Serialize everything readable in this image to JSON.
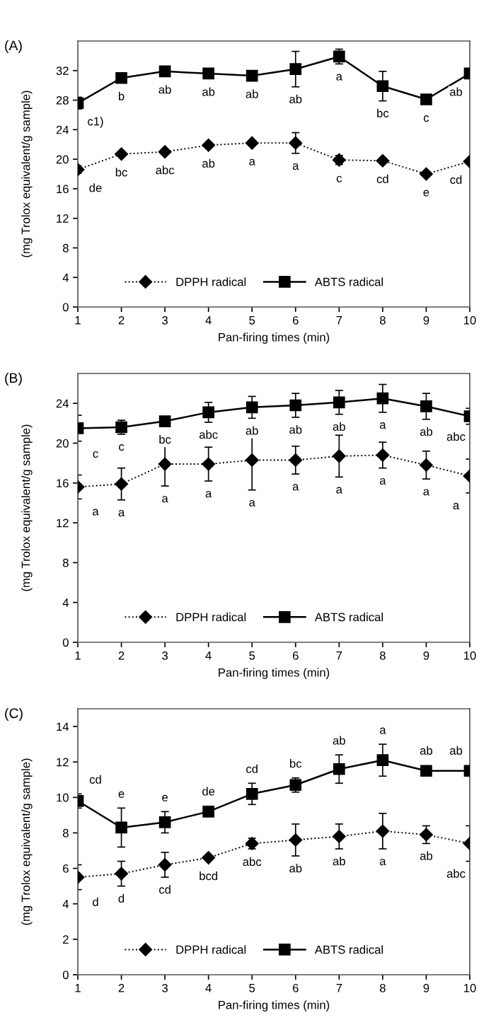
{
  "chart_data": [
    {
      "type": "line",
      "title": "(A)",
      "xlabel": "Pan-firing times (min)",
      "ylabel": "(mg Trolox equivalent/g sample)",
      "x": [
        1,
        2,
        3,
        4,
        5,
        6,
        7,
        8,
        9,
        10
      ],
      "xlim": [
        1,
        10
      ],
      "xticks": [
        1,
        2,
        3,
        4,
        5,
        6,
        7,
        8,
        9,
        10
      ],
      "ylim": [
        0,
        36
      ],
      "yticks": [
        0,
        4,
        8,
        12,
        16,
        20,
        24,
        28,
        32
      ],
      "grid": false,
      "legend": "bottom",
      "series": [
        {
          "name": "DPPH radical",
          "color": "#000000",
          "marker": "diamond",
          "line_style": "dotted",
          "values": [
            18.6,
            20.7,
            21.0,
            21.9,
            22.2,
            22.2,
            19.9,
            19.8,
            18.0,
            19.7
          ],
          "errors": [
            0.5,
            0.3,
            0.3,
            0.3,
            0.3,
            1.4,
            0.6,
            0.3,
            0.3,
            0.3
          ],
          "value_labels": [
            "de",
            "bc",
            "abc",
            "ab",
            "a",
            "a",
            "c",
            "cd",
            "e",
            "cd"
          ]
        },
        {
          "name": "ABTS radical",
          "color": "#000000",
          "marker": "square",
          "line_style": "solid",
          "values": [
            27.6,
            31.0,
            31.9,
            31.6,
            31.3,
            32.2,
            33.9,
            29.9,
            28.1,
            31.6
          ],
          "errors": [
            0.8,
            0.3,
            0.3,
            0.3,
            0.5,
            2.4,
            1.0,
            2.0,
            0.3,
            0.3
          ],
          "value_labels": [
            "c1)",
            "b",
            "ab",
            "ab",
            "ab",
            "ab",
            "a",
            "bc",
            "c",
            "ab"
          ]
        }
      ]
    },
    {
      "type": "line",
      "title": "(B)",
      "xlabel": "Pan-firing times (min)",
      "ylabel": "(mg Trolox equivalent/g sample)",
      "x": [
        1,
        2,
        3,
        4,
        5,
        6,
        7,
        8,
        9,
        10
      ],
      "xlim": [
        1,
        10
      ],
      "xticks": [
        1,
        2,
        3,
        4,
        5,
        6,
        7,
        8,
        9,
        10
      ],
      "ylim": [
        0,
        27
      ],
      "yticks": [
        0,
        4,
        8,
        12,
        16,
        20,
        24
      ],
      "grid": false,
      "legend": "bottom",
      "series": [
        {
          "name": "DPPH radical",
          "color": "#000000",
          "marker": "diamond",
          "line_style": "dotted",
          "values": [
            15.6,
            15.9,
            17.9,
            17.9,
            18.3,
            18.3,
            18.7,
            18.8,
            17.8,
            16.7
          ],
          "errors": [
            1.2,
            1.6,
            2.2,
            1.7,
            3.0,
            1.4,
            2.1,
            1.3,
            1.4,
            1.7
          ],
          "value_labels": [
            "a",
            "a",
            "a",
            "a",
            "a",
            "a",
            "a",
            "a",
            "a",
            "a"
          ]
        },
        {
          "name": "ABTS radical",
          "color": "#000000",
          "marker": "square",
          "line_style": "solid",
          "values": [
            21.5,
            21.6,
            22.2,
            23.1,
            23.6,
            23.8,
            24.1,
            24.5,
            23.7,
            22.7
          ],
          "errors": [
            1.3,
            0.7,
            0.3,
            1.0,
            1.1,
            1.2,
            1.2,
            1.4,
            1.3,
            0.8
          ],
          "value_labels": [
            "c",
            "c",
            "bc",
            "abc",
            "ab",
            "ab",
            "ab",
            "a",
            "ab",
            "abc"
          ]
        }
      ]
    },
    {
      "type": "line",
      "title": "(C)",
      "xlabel": "Pan-firing times (min)",
      "ylabel": "(mg Trolox equivalent/g sample)",
      "x": [
        1,
        2,
        3,
        4,
        5,
        6,
        7,
        8,
        9,
        10
      ],
      "xlim": [
        1,
        10
      ],
      "xticks": [
        1,
        2,
        3,
        4,
        5,
        6,
        7,
        8,
        9,
        10
      ],
      "ylim": [
        0,
        15
      ],
      "yticks": [
        0,
        2,
        4,
        6,
        8,
        10,
        12,
        14
      ],
      "grid": false,
      "legend": "bottom",
      "series": [
        {
          "name": "DPPH radical",
          "color": "#000000",
          "marker": "diamond",
          "line_style": "dotted",
          "values": [
            5.5,
            5.7,
            6.2,
            6.6,
            7.4,
            7.6,
            7.8,
            8.1,
            7.9,
            7.4
          ],
          "errors": [
            0.7,
            0.7,
            0.7,
            0.1,
            0.3,
            0.9,
            0.7,
            1.0,
            0.5,
            1.0
          ],
          "value_labels": [
            "d",
            "d",
            "cd",
            "bcd",
            "abc",
            "ab",
            "ab",
            "a",
            "ab",
            "abc"
          ]
        },
        {
          "name": "ABTS radical",
          "color": "#000000",
          "marker": "square",
          "line_style": "solid",
          "values": [
            9.8,
            8.3,
            8.6,
            9.2,
            10.2,
            10.7,
            11.6,
            12.1,
            11.5,
            11.5
          ],
          "errors": [
            0.4,
            1.1,
            0.6,
            0.1,
            0.6,
            0.4,
            0.8,
            0.9,
            0.2,
            0.2
          ],
          "value_labels": [
            "cd",
            "e",
            "e",
            "de",
            "cd",
            "bc",
            "ab",
            "a",
            "ab",
            "ab"
          ]
        }
      ]
    }
  ]
}
